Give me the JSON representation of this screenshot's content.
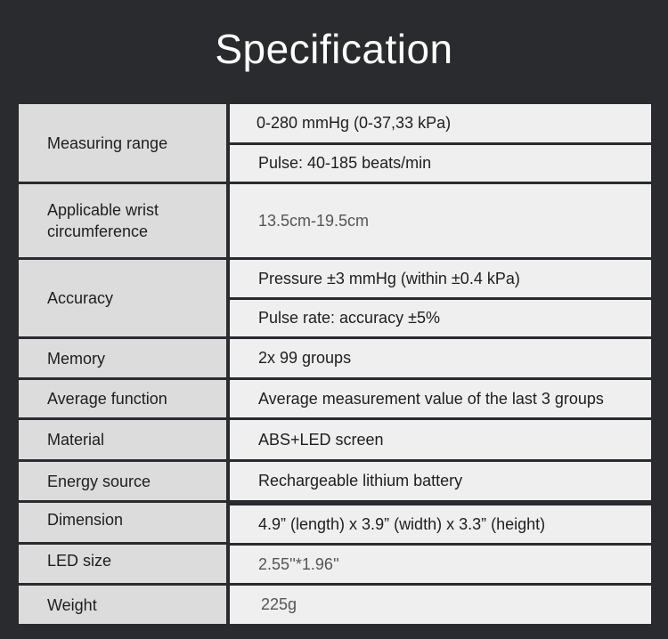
{
  "title": "Specification",
  "rows": [
    {
      "label": "Measuring range",
      "values": [
        "0-280 mmHg (0-37,33 kPa)",
        "Pulse: 40-185 beats/min"
      ]
    },
    {
      "label_line1": "Applicable wrist",
      "label_line2": "circumference",
      "values": [
        "13.5cm-19.5cm"
      ]
    },
    {
      "label": "Accuracy",
      "values": [
        "Pressure ±3 mmHg (within ±0.4 kPa)",
        "Pulse rate: accuracy ±5%"
      ]
    },
    {
      "label": "Memory",
      "values": [
        "2x 99 groups"
      ]
    },
    {
      "label": "Average function",
      "values": [
        "Average measurement value of the last 3 groups"
      ]
    },
    {
      "label": "Material",
      "values": [
        "ABS+LED screen"
      ]
    },
    {
      "label": "Energy source",
      "values": [
        "Rechargeable lithium battery"
      ]
    },
    {
      "label": "Dimension",
      "values": [
        "4.9” (length) x 3.9” (width) x 3.3” (height)"
      ]
    },
    {
      "label": "LED size",
      "values": [
        "2.55''*1.96''"
      ]
    },
    {
      "label": "Weight",
      "values": [
        "225g"
      ]
    }
  ]
}
